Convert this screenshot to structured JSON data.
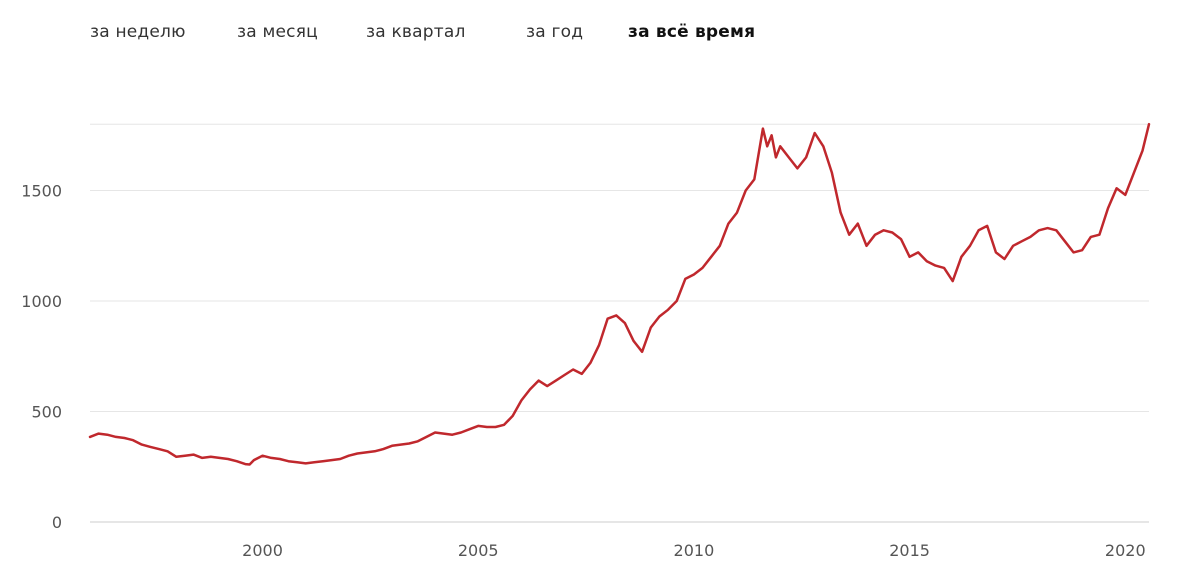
{
  "tabs": [
    {
      "label": "за неделю",
      "active": false
    },
    {
      "label": "за месяц",
      "active": false
    },
    {
      "label": "за квартал",
      "active": false
    },
    {
      "label": "за год",
      "active": false
    },
    {
      "label": "за всё время",
      "active": true
    }
  ],
  "chart_data": {
    "type": "line",
    "title": "",
    "xlabel": "",
    "ylabel": "",
    "xlim": [
      1996.0,
      2020.55
    ],
    "ylim": [
      0,
      1900
    ],
    "grid": true,
    "x_ticks": [
      "2000",
      "2005",
      "2010",
      "2015",
      "2020"
    ],
    "y_ticks": [
      "0",
      "500",
      "1000",
      "1500"
    ],
    "line_color": "#c0282d",
    "grid_color": "#e6e6e6",
    "series": [
      {
        "x": [
          1996.0,
          1996.2,
          1996.4,
          1996.6,
          1996.8,
          1997.0,
          1997.2,
          1997.4,
          1997.6,
          1997.8,
          1998.0,
          1998.2,
          1998.4,
          1998.6,
          1998.8,
          1999.0,
          1999.2,
          1999.4,
          1999.6,
          1999.7,
          1999.8,
          2000.0,
          2000.2,
          2000.4,
          2000.6,
          2000.8,
          2001.0,
          2001.2,
          2001.4,
          2001.6,
          2001.8,
          2002.0,
          2002.2,
          2002.4,
          2002.6,
          2002.8,
          2003.0,
          2003.2,
          2003.4,
          2003.6,
          2003.8,
          2004.0,
          2004.2,
          2004.4,
          2004.6,
          2004.8,
          2005.0,
          2005.2,
          2005.4,
          2005.6,
          2005.8,
          2006.0,
          2006.2,
          2006.4,
          2006.6,
          2006.8,
          2007.0,
          2007.2,
          2007.4,
          2007.6,
          2007.8,
          2008.0,
          2008.2,
          2008.4,
          2008.6,
          2008.8,
          2009.0,
          2009.2,
          2009.4,
          2009.6,
          2009.8,
          2010.0,
          2010.2,
          2010.4,
          2010.6,
          2010.8,
          2011.0,
          2011.2,
          2011.4,
          2011.6,
          2011.7,
          2011.8,
          2011.9,
          2012.0,
          2012.2,
          2012.4,
          2012.6,
          2012.8,
          2013.0,
          2013.2,
          2013.4,
          2013.6,
          2013.8,
          2014.0,
          2014.2,
          2014.4,
          2014.6,
          2014.8,
          2015.0,
          2015.2,
          2015.4,
          2015.6,
          2015.8,
          2016.0,
          2016.2,
          2016.4,
          2016.6,
          2016.8,
          2017.0,
          2017.2,
          2017.4,
          2017.6,
          2017.8,
          2018.0,
          2018.2,
          2018.4,
          2018.6,
          2018.8,
          2019.0,
          2019.2,
          2019.4,
          2019.6,
          2019.8,
          2020.0,
          2020.2,
          2020.4,
          2020.55
        ],
        "values": [
          385,
          400,
          395,
          385,
          380,
          370,
          350,
          340,
          330,
          320,
          295,
          300,
          305,
          290,
          295,
          290,
          285,
          275,
          262,
          260,
          280,
          300,
          290,
          285,
          275,
          270,
          265,
          270,
          275,
          280,
          285,
          300,
          310,
          315,
          320,
          330,
          345,
          350,
          355,
          365,
          385,
          405,
          400,
          395,
          405,
          420,
          435,
          430,
          430,
          440,
          480,
          550,
          600,
          640,
          615,
          640,
          665,
          690,
          670,
          720,
          800,
          920,
          935,
          900,
          820,
          770,
          880,
          930,
          960,
          1000,
          1100,
          1120,
          1150,
          1200,
          1250,
          1350,
          1400,
          1500,
          1550,
          1780,
          1700,
          1750,
          1650,
          1700,
          1650,
          1600,
          1650,
          1760,
          1700,
          1580,
          1400,
          1300,
          1350,
          1250,
          1300,
          1320,
          1310,
          1280,
          1200,
          1220,
          1180,
          1160,
          1150,
          1090,
          1200,
          1250,
          1320,
          1340,
          1220,
          1190,
          1250,
          1270,
          1290,
          1320,
          1330,
          1320,
          1270,
          1220,
          1230,
          1290,
          1300,
          1420,
          1510,
          1480,
          1580,
          1680,
          1800
        ]
      }
    ]
  }
}
